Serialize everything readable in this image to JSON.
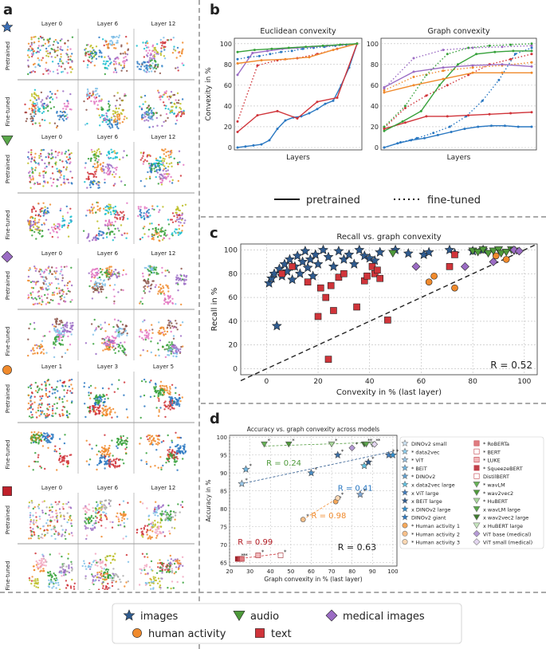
{
  "panels": {
    "a": "a",
    "b": "b",
    "c": "c",
    "d": "d"
  },
  "panel_a": {
    "label_pretrained": "Pretrained",
    "label_finetuned": "Fine-tuned",
    "groups": [
      {
        "modality": "images",
        "headers": [
          "Layer 0",
          "Layer 6",
          "Layer 12"
        ],
        "marker": "star",
        "color": "#3b6fb6"
      },
      {
        "modality": "audio",
        "headers": [
          "Layer 0",
          "Layer 6",
          "Layer 12"
        ],
        "marker": "triangle",
        "color": "#5aa84a"
      },
      {
        "modality": "medical images",
        "headers": [
          "Layer 0",
          "Layer 6",
          "Layer 12"
        ],
        "marker": "diamond",
        "color": "#9b6cc4"
      },
      {
        "modality": "human activity",
        "headers": [
          "Layer 1",
          "Layer 3",
          "Layer 5"
        ],
        "marker": "circle",
        "color": "#f08a2c"
      },
      {
        "modality": "text",
        "headers": [
          "Layer 0",
          "Layer 6",
          "Layer 12"
        ],
        "marker": "square",
        "color": "#c0202a"
      }
    ]
  },
  "panel_b": {
    "titles": [
      "Euclidean convexity",
      "Graph convexity"
    ],
    "ylabel": "Convexity in %",
    "xlabel": "Layers",
    "yticks": [
      "0",
      "20",
      "40",
      "60",
      "80",
      "100"
    ],
    "legend_pretrained": "pretrained",
    "legend_finetuned": "fine-tuned"
  },
  "panel_c": {
    "title": "Recall vs. graph convexity",
    "xlabel": "Convexity in % (last layer)",
    "ylabel": "Recall in %",
    "xticks": [
      "0",
      "20",
      "40",
      "60",
      "80",
      "100"
    ],
    "yticks": [
      "0",
      "20",
      "40",
      "60",
      "80",
      "100"
    ],
    "r_label": "R = 0.52"
  },
  "panel_d": {
    "title": "Accuracy vs. graph convexity across models",
    "xlabel": "Graph convexity in % (last layer)",
    "ylabel": "Accuracy in %",
    "xticks": [
      "20",
      "30",
      "40",
      "50",
      "60",
      "70",
      "80",
      "90",
      "100"
    ],
    "yticks": [
      "65",
      "70",
      "75",
      "80",
      "85",
      "90",
      "95",
      "100"
    ],
    "r_overall": "R = 0.63",
    "r_audio": "R = 0.24",
    "r_images": "R = 0.41",
    "r_human": "R = 0.98",
    "r_text": "R = 0.99",
    "legend_col1": [
      "DINOv2 small",
      "* data2vec",
      "* ViT",
      "* BEiT",
      "* DINOv2",
      "x data2vec large",
      "x ViT large",
      "x BEiT large",
      "x DINOv2 large",
      "DINOv2 giant",
      "* Human activity 1",
      "* Human activity 2",
      "* Human activity 3"
    ],
    "legend_col2": [
      "* RoBERTa",
      "* BERT",
      "* LUKE",
      "* SqueezeBERT",
      "DistilBERT",
      "* wavLM",
      "* wav2vec2",
      "* HuBERT",
      "x wavLM large",
      "x wav2vec2 large",
      "x HuBERT large",
      "ViT base (medical)",
      "ViT small (medical)"
    ]
  },
  "bottom_legend": {
    "images": "images",
    "audio": "audio",
    "medical": "medical images",
    "human": "human activity",
    "text": "text"
  },
  "colors": {
    "images": "#2f5b8f",
    "audio": "#4e9a3a",
    "medical": "#9b6cc4",
    "human": "#f08a2c",
    "text": "#d0343a",
    "blue_line": "#2a78c2",
    "green_line": "#36a13a",
    "orange_line": "#f08a2c",
    "purple_line": "#9b6cc4",
    "red_line": "#d0343a"
  },
  "chart_data": [
    {
      "type": "line",
      "title": "Euclidean convexity",
      "xlabel": "Layers",
      "ylabel": "Convexity in %",
      "ylim": [
        0,
        100
      ],
      "series": [
        {
          "name": "images pretrained",
          "color": "blue",
          "values": [
            0,
            1,
            2,
            3,
            7,
            18,
            26,
            29,
            30,
            33,
            37,
            42,
            45,
            60,
            77,
            100
          ]
        },
        {
          "name": "images fine-tuned",
          "color": "blue",
          "style": "dotted",
          "values": [
            85,
            87,
            88,
            90,
            92,
            93,
            95,
            96,
            97,
            98,
            99,
            100
          ]
        },
        {
          "name": "text pretrained",
          "color": "red",
          "values": [
            15,
            31,
            35,
            28,
            44,
            48,
            100
          ]
        },
        {
          "name": "text fine-tuned",
          "color": "red",
          "style": "dotted",
          "values": [
            25,
            79,
            84,
            86,
            90,
            95,
            100
          ]
        },
        {
          "name": "medical pretrained",
          "color": "purple",
          "values": [
            70,
            91,
            93,
            95,
            96,
            97,
            98,
            99,
            100
          ]
        },
        {
          "name": "human pretrained",
          "color": "orange",
          "values": [
            81,
            84,
            85,
            87,
            94,
            100
          ]
        },
        {
          "name": "audio pretrained",
          "color": "green",
          "values": [
            92,
            94,
            95,
            96,
            97,
            98,
            99,
            100
          ]
        }
      ]
    },
    {
      "type": "line",
      "title": "Graph convexity",
      "xlabel": "Layers",
      "ylabel": "Convexity in %",
      "ylim": [
        0,
        100
      ],
      "series": [
        {
          "name": "images pretrained",
          "color": "blue",
          "values": [
            0,
            4,
            7,
            9,
            12,
            15,
            18,
            20,
            21,
            21,
            20,
            20
          ]
        },
        {
          "name": "images fine-tuned",
          "color": "blue",
          "style": "dotted",
          "values": [
            0,
            5,
            9,
            14,
            20,
            30,
            45,
            65,
            90,
            96
          ]
        },
        {
          "name": "text pretrained",
          "color": "red",
          "values": [
            18,
            24,
            30,
            30,
            31,
            32,
            33,
            34
          ]
        },
        {
          "name": "text fine-tuned",
          "color": "red",
          "style": "dotted",
          "values": [
            19,
            38,
            50,
            60,
            70,
            80,
            85,
            90
          ]
        },
        {
          "name": "audio pretrained",
          "color": "green",
          "values": [
            16,
            25,
            35,
            60,
            80,
            90,
            92,
            93,
            93
          ]
        },
        {
          "name": "audio fine-tuned",
          "color": "green",
          "style": "dotted",
          "values": [
            20,
            40,
            70,
            90,
            96,
            98,
            99,
            100
          ]
        },
        {
          "name": "human pretrained",
          "color": "orange",
          "values": [
            53,
            60,
            66,
            72,
            72,
            72
          ]
        },
        {
          "name": "human fine-tuned",
          "color": "orange",
          "style": "dotted",
          "values": [
            55,
            68,
            74,
            77,
            79,
            82
          ]
        },
        {
          "name": "medical pretrained",
          "color": "purple",
          "values": [
            58,
            73,
            77,
            79,
            80,
            78
          ]
        },
        {
          "name": "medical fine-tuned",
          "color": "purple",
          "style": "dotted",
          "values": [
            57,
            86,
            94,
            96,
            97,
            98
          ]
        }
      ]
    },
    {
      "type": "scatter",
      "title": "Recall vs. graph convexity",
      "xlabel": "Convexity in % (last layer)",
      "ylabel": "Recall in %",
      "xlim": [
        -10,
        105
      ],
      "ylim": [
        -5,
        105
      ],
      "series": [
        {
          "name": "images",
          "marker": "star",
          "points": [
            [
              4,
              36
            ],
            [
              1,
              72
            ],
            [
              2,
              76
            ],
            [
              3,
              80
            ],
            [
              5,
              84
            ],
            [
              6,
              78
            ],
            [
              7,
              88
            ],
            [
              8,
              82
            ],
            [
              9,
              92
            ],
            [
              10,
              75
            ],
            [
              11,
              86
            ],
            [
              12,
              95
            ],
            [
              13,
              80
            ],
            [
              14,
              90
            ],
            [
              15,
              99
            ],
            [
              16,
              85
            ],
            [
              17,
              92
            ],
            [
              18,
              78
            ],
            [
              19,
              96
            ],
            [
              20,
              88
            ],
            [
              22,
              100
            ],
            [
              24,
              94
            ],
            [
              26,
              86
            ],
            [
              28,
              99
            ],
            [
              30,
              92
            ],
            [
              32,
              96
            ],
            [
              34,
              88
            ],
            [
              36,
              100
            ],
            [
              38,
              95
            ],
            [
              40,
              93
            ],
            [
              42,
              91
            ],
            [
              44,
              98
            ],
            [
              50,
              100
            ],
            [
              55,
              97
            ],
            [
              61,
              96
            ],
            [
              63,
              98
            ],
            [
              71,
              100
            ],
            [
              73,
              97
            ],
            [
              80,
              99
            ],
            [
              84,
              100
            ]
          ]
        },
        {
          "name": "text",
          "marker": "square",
          "points": [
            [
              6,
              80
            ],
            [
              10,
              86
            ],
            [
              16,
              73
            ],
            [
              20,
              44
            ],
            [
              21,
              68
            ],
            [
              23,
              60
            ],
            [
              24,
              8
            ],
            [
              25,
              70
            ],
            [
              26,
              49
            ],
            [
              28,
              77
            ],
            [
              30,
              80
            ],
            [
              35,
              52
            ],
            [
              38,
              74
            ],
            [
              39,
              78
            ],
            [
              41,
              86
            ],
            [
              42,
              80
            ],
            [
              43,
              83
            ],
            [
              44,
              76
            ],
            [
              47,
              41
            ],
            [
              71,
              86
            ],
            [
              73,
              96
            ]
          ]
        },
        {
          "name": "human activity",
          "marker": "circle",
          "points": [
            [
              63,
              73
            ],
            [
              65,
              78
            ],
            [
              73,
              68
            ],
            [
              89,
              95
            ],
            [
              93,
              92
            ]
          ]
        },
        {
          "name": "audio",
          "marker": "triangle",
          "points": [
            [
              49,
              97
            ],
            [
              80,
              99
            ],
            [
              82,
              98
            ],
            [
              84,
              100
            ],
            [
              86,
              97
            ],
            [
              88,
              99
            ],
            [
              90,
              100
            ],
            [
              91,
              97
            ],
            [
              93,
              98
            ],
            [
              95,
              100
            ],
            [
              96,
              99
            ]
          ]
        },
        {
          "name": "medical images",
          "marker": "diamond",
          "points": [
            [
              58,
              86
            ],
            [
              77,
              86
            ],
            [
              88,
              90
            ],
            [
              96,
              100
            ],
            [
              98,
              99
            ]
          ]
        }
      ],
      "annotations": [
        "R = 0.52"
      ]
    },
    {
      "type": "scatter",
      "title": "Accuracy vs. graph convexity across models",
      "xlabel": "Graph convexity in % (last layer)",
      "ylabel": "Accuracy in %",
      "xlim": [
        20,
        102
      ],
      "ylim": [
        64,
        100
      ],
      "series": [
        {
          "name": "images",
          "marker": "star",
          "points": [
            [
              26,
              87
            ],
            [
              28,
              91
            ],
            [
              60,
              90
            ],
            [
              73,
              95
            ],
            [
              84,
              84
            ],
            [
              86,
              92
            ],
            [
              88,
              93
            ],
            [
              98,
              95
            ],
            [
              100,
              95
            ]
          ]
        },
        {
          "name": "audio",
          "marker": "triangle",
          "points": [
            [
              37,
              98
            ],
            [
              49,
              98
            ],
            [
              70,
              98
            ],
            [
              86,
              98
            ],
            [
              87,
              98
            ],
            [
              90,
              98
            ]
          ]
        },
        {
          "name": "human activity",
          "marker": "circle",
          "points": [
            [
              56,
              77
            ],
            [
              72,
              82
            ],
            [
              73,
              83
            ]
          ]
        },
        {
          "name": "text",
          "marker": "square",
          "points": [
            [
              24,
              66
            ],
            [
              25,
              66
            ],
            [
              26,
              66
            ],
            [
              34,
              67
            ],
            [
              45,
              67
            ]
          ]
        },
        {
          "name": "medical images",
          "marker": "diamond",
          "points": [
            [
              80,
              97
            ],
            [
              91,
              98
            ]
          ]
        }
      ],
      "annotations": [
        "R = 0.63",
        "R = 0.24",
        "R = 0.41",
        "R = 0.98",
        "R = 0.99"
      ]
    }
  ]
}
